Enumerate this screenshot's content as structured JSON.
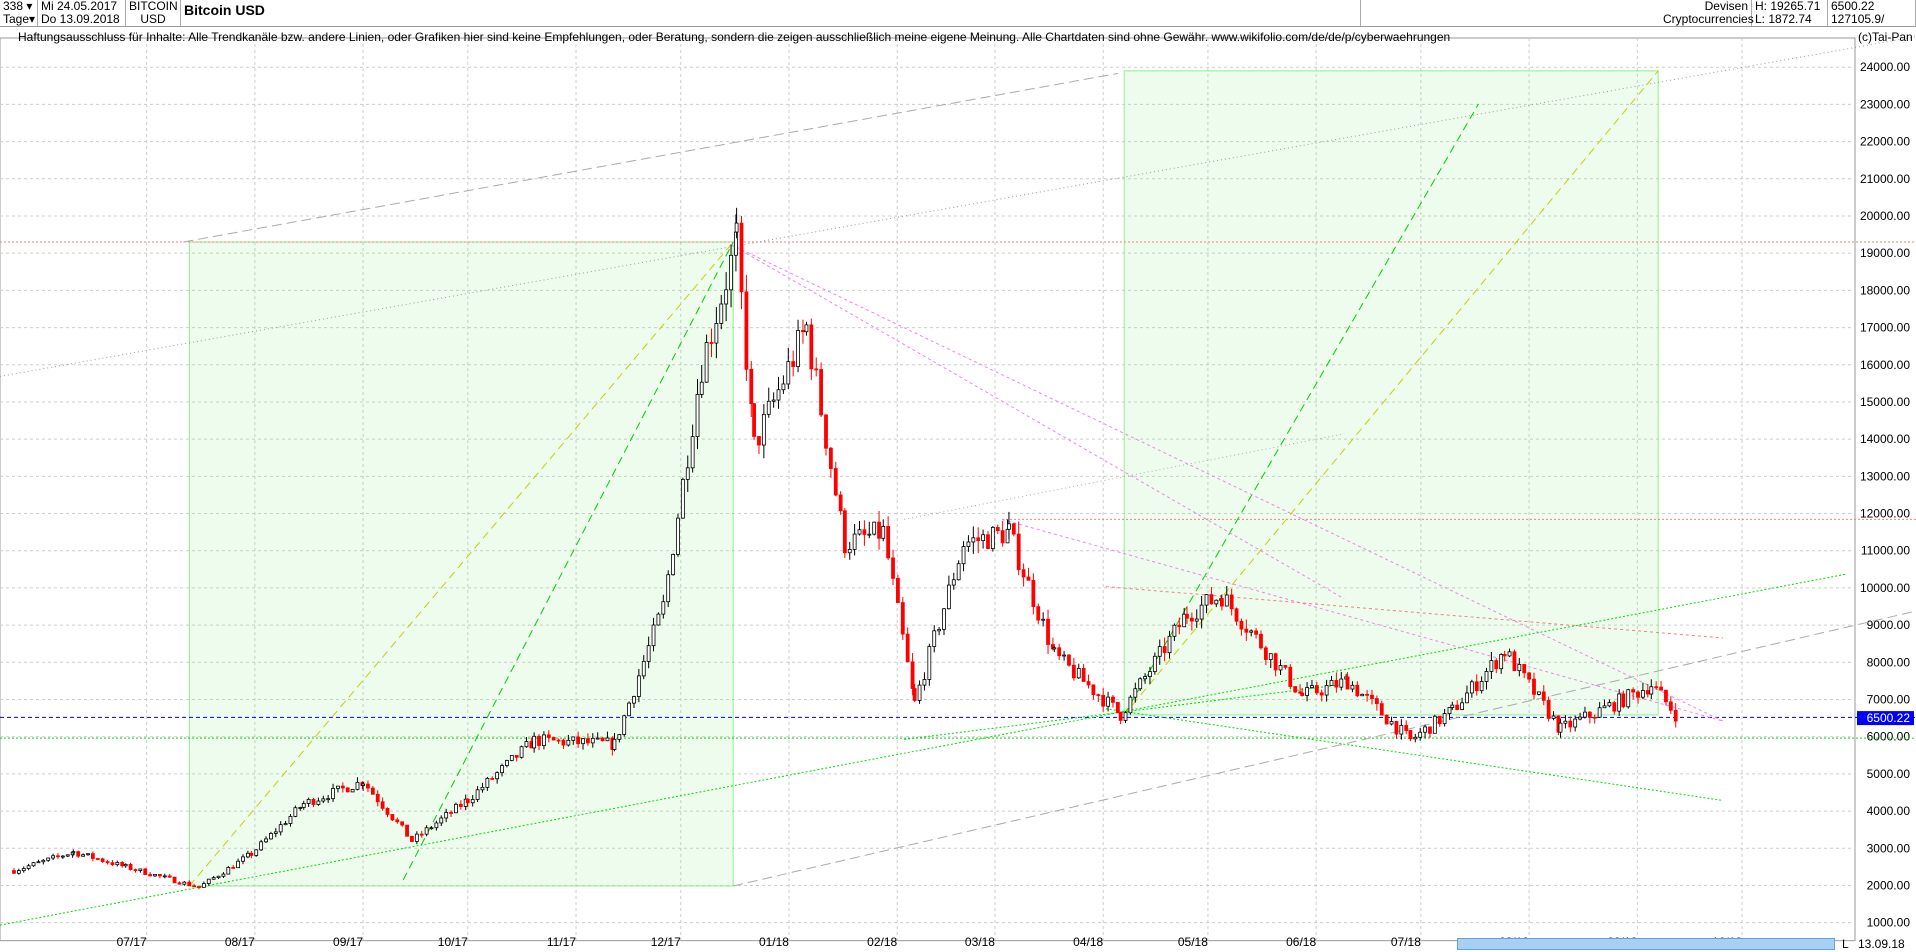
{
  "header": {
    "period_count": "338",
    "period_unit": "Tage",
    "date_from": "Mi 24.05.2017",
    "date_to": "Do 13.09.2018",
    "symbol_line1": "BITCOIN",
    "symbol_line2": "USD",
    "title": "Bitcoin USD",
    "category_line1": "Devisen",
    "category_line2": "Cryptocurrencies",
    "high": "H: 19265.71",
    "low": "L: 1872.74",
    "last": "6500.22",
    "volume": "127105.9/"
  },
  "disclaimer": "Haftungsausschluss für Inhalte: Alle Trendkanäle bzw. andere Linien, oder Grafiken hier sind keine Empfehlungen, oder Beratung, sondern die zeigen ausschließlich meine eigene Meinung. Alle Chartdaten sind ohne Gewähr.  www.wikifolio.com/de/de/p/cyberwaehrungen",
  "copyright": "(c)Tai-Pan",
  "footer": {
    "scale_mode": "L",
    "end_date": "13.09.18"
  },
  "chart_data": {
    "type": "candlestick",
    "title": "Bitcoin USD",
    "ylim": [
      1000,
      24000
    ],
    "y_ticks": [
      "1000.00",
      "2000.00",
      "3000.00",
      "4000.00",
      "5000.00",
      "6000.00",
      "7000.00",
      "8000.00",
      "9000.00",
      "10000.00",
      "11000.00",
      "12000.00",
      "13000.00",
      "14000.00",
      "15000.00",
      "16000.00",
      "17000.00",
      "18000.00",
      "19000.00",
      "20000.00",
      "21000.00",
      "22000.00",
      "23000.00",
      "24000.00"
    ],
    "x_ticks": [
      "07/17",
      "08/17",
      "09/17",
      "10/17",
      "11/17",
      "12/17",
      "01/18",
      "02/18",
      "03/18",
      "04/18",
      "05/18",
      "06/18",
      "07/18",
      "08/18",
      "09/18",
      "10/18"
    ],
    "current_price": 6500.22,
    "current_price_label": "6500.22",
    "grid": true,
    "colors": {
      "up": "#000000",
      "down": "#ff0000",
      "current": "#0000ff",
      "box": "#90ee90"
    },
    "approx_closes": [
      [
        "2017-05-24",
        2400
      ],
      [
        "2017-06-10",
        2900
      ],
      [
        "2017-06-25",
        2500
      ],
      [
        "2017-07-16",
        1950
      ],
      [
        "2017-07-31",
        2850
      ],
      [
        "2017-08-15",
        4200
      ],
      [
        "2017-09-01",
        4800
      ],
      [
        "2017-09-15",
        3200
      ],
      [
        "2017-10-01",
        4300
      ],
      [
        "2017-10-20",
        5900
      ],
      [
        "2017-11-12",
        5800
      ],
      [
        "2017-11-26",
        9500
      ],
      [
        "2017-12-07",
        16000
      ],
      [
        "2017-12-17",
        19265
      ],
      [
        "2017-12-22",
        13800
      ],
      [
        "2018-01-06",
        17000
      ],
      [
        "2018-01-17",
        11200
      ],
      [
        "2018-01-28",
        11500
      ],
      [
        "2018-02-06",
        6900
      ],
      [
        "2018-02-20",
        11200
      ],
      [
        "2018-03-05",
        11500
      ],
      [
        "2018-03-18",
        8200
      ],
      [
        "2018-04-06",
        6600
      ],
      [
        "2018-04-25",
        9300
      ],
      [
        "2018-05-05",
        9800
      ],
      [
        "2018-05-28",
        7100
      ],
      [
        "2018-06-10",
        7500
      ],
      [
        "2018-06-28",
        5900
      ],
      [
        "2018-07-10",
        6700
      ],
      [
        "2018-07-25",
        8300
      ],
      [
        "2018-08-10",
        6200
      ],
      [
        "2018-08-28",
        7000
      ],
      [
        "2018-09-05",
        7400
      ],
      [
        "2018-09-13",
        6500
      ]
    ]
  }
}
